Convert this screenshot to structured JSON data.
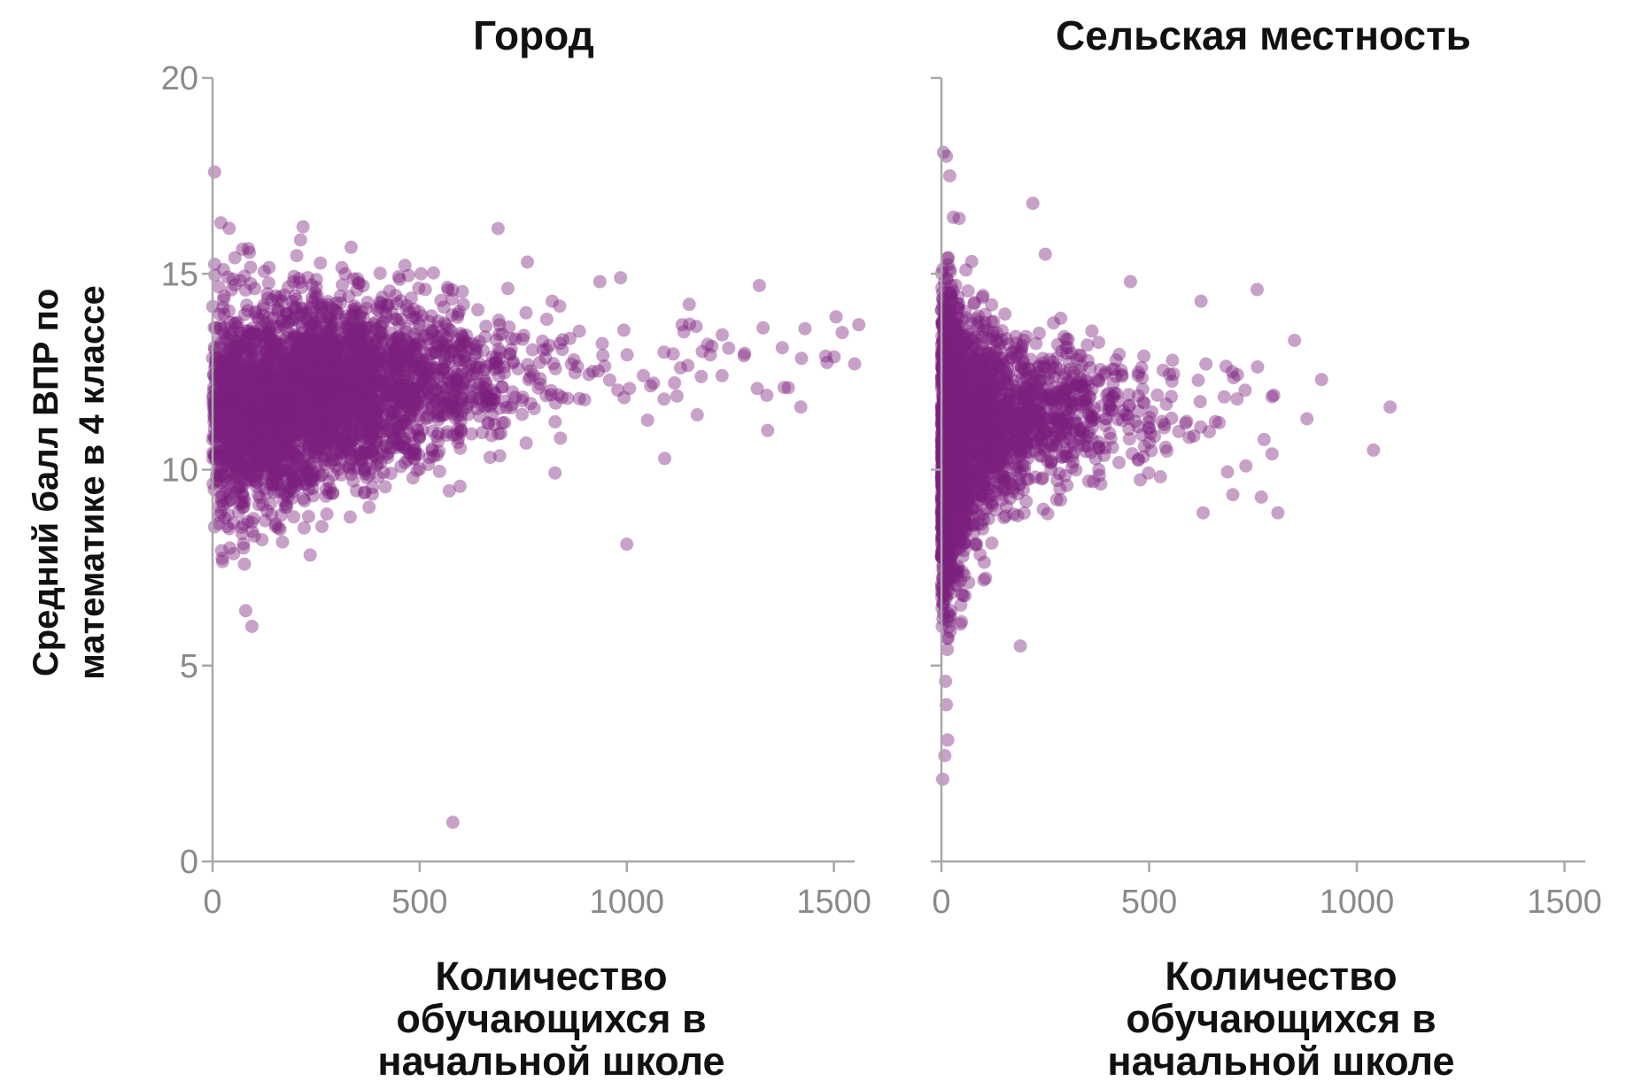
{
  "figure": {
    "ylabel_lines": [
      "Средний балл ВПР по",
      "математике в 4 классе"
    ],
    "ylabel": "Средний балл ВПР по математике в 4 классе"
  },
  "chart_data": [
    {
      "type": "scatter",
      "title": "Город",
      "xlabel_lines": [
        "Количество",
        "обучающихся в",
        "начальной школе"
      ],
      "xlabel": "Количество обучающихся в начальной школе",
      "ylabel": "Средний балл ВПР по математике в 4 класse",
      "xlim": [
        0,
        1550
      ],
      "ylim": [
        0,
        20
      ],
      "xticks": [
        0,
        500,
        1000,
        1500
      ],
      "xtick_labels": [
        "0",
        "500",
        "1000",
        "1500"
      ],
      "yticks": [
        0,
        5,
        10,
        15,
        20
      ],
      "ytick_labels": [
        "0",
        "5",
        "10",
        "15",
        "20"
      ],
      "grid": false,
      "color": "#7b1f7f",
      "distribution": [
        {
          "x_min": 0,
          "x_max": 100,
          "y_mean": 11.4,
          "y_spread": 1.9,
          "weight": 0.18
        },
        {
          "x_min": 100,
          "x_max": 200,
          "y_mean": 11.6,
          "y_spread": 1.7,
          "weight": 0.22
        },
        {
          "x_min": 200,
          "x_max": 300,
          "y_mean": 11.9,
          "y_spread": 1.6,
          "weight": 0.2
        },
        {
          "x_min": 300,
          "x_max": 400,
          "y_mean": 12.1,
          "y_spread": 1.5,
          "weight": 0.16
        },
        {
          "x_min": 400,
          "x_max": 500,
          "y_mean": 12.2,
          "y_spread": 1.4,
          "weight": 0.1
        },
        {
          "x_min": 500,
          "x_max": 600,
          "y_mean": 12.3,
          "y_spread": 1.3,
          "weight": 0.06
        },
        {
          "x_min": 600,
          "x_max": 700,
          "y_mean": 12.3,
          "y_spread": 1.2,
          "weight": 0.035
        },
        {
          "x_min": 700,
          "x_max": 900,
          "y_mean": 12.4,
          "y_spread": 1.2,
          "weight": 0.02
        },
        {
          "x_min": 900,
          "x_max": 1200,
          "y_mean": 12.6,
          "y_spread": 1.1,
          "weight": 0.008
        },
        {
          "x_min": 1200,
          "x_max": 1550,
          "y_mean": 12.9,
          "y_spread": 0.9,
          "weight": 0.004
        }
      ],
      "outliers": [
        {
          "x": 5,
          "y": 17.6
        },
        {
          "x": 20,
          "y": 16.3
        },
        {
          "x": 95,
          "y": 6.0
        },
        {
          "x": 80,
          "y": 6.4
        },
        {
          "x": 580,
          "y": 1.0
        },
        {
          "x": 1000,
          "y": 8.1
        },
        {
          "x": 1320,
          "y": 14.7
        },
        {
          "x": 1505,
          "y": 13.9
        },
        {
          "x": 1560,
          "y": 13.7
        },
        {
          "x": 1550,
          "y": 12.7
        },
        {
          "x": 1480,
          "y": 12.9
        },
        {
          "x": 1380,
          "y": 12.1
        },
        {
          "x": 1420,
          "y": 11.6
        },
        {
          "x": 1340,
          "y": 11.0
        },
        {
          "x": 1230,
          "y": 12.4
        },
        {
          "x": 1130,
          "y": 12.6
        },
        {
          "x": 1170,
          "y": 11.4
        },
        {
          "x": 1090,
          "y": 13.0
        },
        {
          "x": 985,
          "y": 14.9
        },
        {
          "x": 935,
          "y": 14.8
        },
        {
          "x": 760,
          "y": 15.3
        },
        {
          "x": 820,
          "y": 14.3
        },
        {
          "x": 1040,
          "y": 12.4
        },
        {
          "x": 1090,
          "y": 11.8
        },
        {
          "x": 1195,
          "y": 13.2
        },
        {
          "x": 1430,
          "y": 13.6
        },
        {
          "x": 1520,
          "y": 13.5
        }
      ]
    },
    {
      "type": "scatter",
      "title": "Сельская местность",
      "xlabel_lines": [
        "Количество",
        "обучающихся в",
        "начальной школе"
      ],
      "xlabel": "Количество обучающихся в начальной школе",
      "ylabel": "Средний балл ВПР по математике в 4 классе",
      "xlim": [
        0,
        1550
      ],
      "ylim": [
        0,
        20
      ],
      "xticks": [
        0,
        500,
        1000,
        1500
      ],
      "xtick_labels": [
        "0",
        "500",
        "1000",
        "1500"
      ],
      "yticks": [
        0,
        5,
        10,
        15,
        20
      ],
      "ytick_labels": [
        "0",
        "5",
        "10",
        "15",
        "20"
      ],
      "grid": false,
      "color": "#7b1f7f",
      "distribution": [
        {
          "x_min": 0,
          "x_max": 25,
          "y_mean": 10.4,
          "y_spread": 2.6,
          "weight": 0.3
        },
        {
          "x_min": 25,
          "x_max": 60,
          "y_mean": 10.8,
          "y_spread": 2.1,
          "weight": 0.24
        },
        {
          "x_min": 60,
          "x_max": 120,
          "y_mean": 11.1,
          "y_spread": 1.7,
          "weight": 0.18
        },
        {
          "x_min": 120,
          "x_max": 200,
          "y_mean": 11.3,
          "y_spread": 1.4,
          "weight": 0.12
        },
        {
          "x_min": 200,
          "x_max": 300,
          "y_mean": 11.4,
          "y_spread": 1.2,
          "weight": 0.08
        },
        {
          "x_min": 300,
          "x_max": 400,
          "y_mean": 11.5,
          "y_spread": 1.1,
          "weight": 0.045
        },
        {
          "x_min": 400,
          "x_max": 550,
          "y_mean": 11.5,
          "y_spread": 1.0,
          "weight": 0.025
        },
        {
          "x_min": 550,
          "x_max": 800,
          "y_mean": 11.4,
          "y_spread": 1.0,
          "weight": 0.01
        }
      ],
      "outliers": [
        {
          "x": 5,
          "y": 18.1
        },
        {
          "x": 12,
          "y": 18.0
        },
        {
          "x": 20,
          "y": 17.5
        },
        {
          "x": 3,
          "y": 2.1
        },
        {
          "x": 8,
          "y": 2.7
        },
        {
          "x": 15,
          "y": 3.1
        },
        {
          "x": 12,
          "y": 4.0
        },
        {
          "x": 10,
          "y": 4.6
        },
        {
          "x": 190,
          "y": 5.5
        },
        {
          "x": 1080,
          "y": 11.6
        },
        {
          "x": 1040,
          "y": 10.5
        },
        {
          "x": 915,
          "y": 12.3
        },
        {
          "x": 850,
          "y": 13.3
        },
        {
          "x": 800,
          "y": 11.9
        },
        {
          "x": 880,
          "y": 11.3
        },
        {
          "x": 770,
          "y": 9.3
        },
        {
          "x": 810,
          "y": 8.9
        },
        {
          "x": 630,
          "y": 8.9
        },
        {
          "x": 700,
          "y": 12.5
        },
        {
          "x": 760,
          "y": 14.6
        },
        {
          "x": 625,
          "y": 14.3
        },
        {
          "x": 455,
          "y": 14.8
        },
        {
          "x": 220,
          "y": 16.8
        },
        {
          "x": 250,
          "y": 15.5
        }
      ]
    }
  ]
}
